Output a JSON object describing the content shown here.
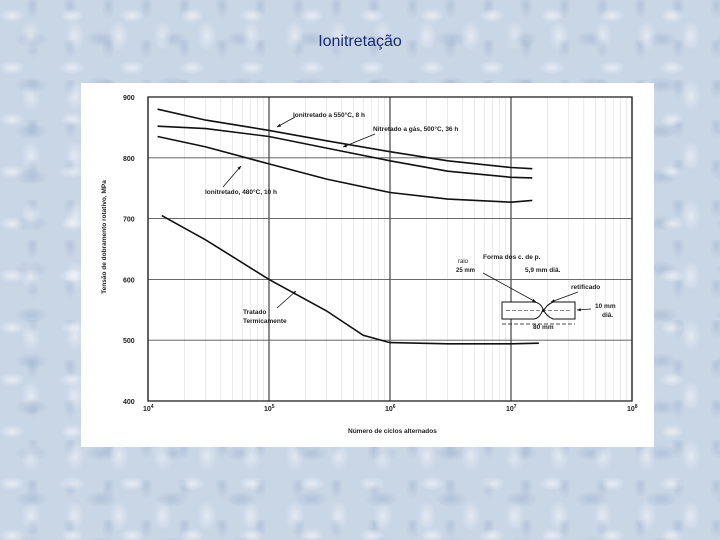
{
  "slide": {
    "title": "Ionitretação"
  },
  "chart_data": {
    "type": "line",
    "xlabel": "Número de ciclos alternados",
    "ylabel": "Tensão de dobramento rotativo, MPa",
    "xscale": "log",
    "xlim": [
      10000,
      100000000
    ],
    "ylim": [
      400,
      900
    ],
    "grid": true,
    "x_ticks": [
      {
        "value": 10000,
        "base": "10",
        "exp": "4"
      },
      {
        "value": 100000,
        "base": "10",
        "exp": "5"
      },
      {
        "value": 1000000,
        "base": "10",
        "exp": "6"
      },
      {
        "value": 10000000,
        "base": "10",
        "exp": "7"
      },
      {
        "value": 100000000,
        "base": "10",
        "exp": "8"
      }
    ],
    "y_ticks": [
      "900",
      "800",
      "700",
      "600",
      "500",
      "400"
    ],
    "series": [
      {
        "name": "Ionitretado a 550°C, 8 h",
        "points": [
          [
            12000,
            880
          ],
          [
            30000,
            862
          ],
          [
            100000,
            845
          ],
          [
            300000,
            828
          ],
          [
            1000000,
            810
          ],
          [
            3000000,
            795
          ],
          [
            10000000,
            784
          ],
          [
            15000000,
            782
          ]
        ]
      },
      {
        "name": "Nitretado a gás, 500°C, 36 h",
        "points": [
          [
            12000,
            852
          ],
          [
            30000,
            848
          ],
          [
            100000,
            835
          ],
          [
            300000,
            816
          ],
          [
            1000000,
            795
          ],
          [
            3000000,
            778
          ],
          [
            10000000,
            768
          ],
          [
            15000000,
            767
          ]
        ]
      },
      {
        "name": "Ionitretado, 480°C, 10 h",
        "points": [
          [
            12000,
            835
          ],
          [
            30000,
            818
          ],
          [
            100000,
            790
          ],
          [
            300000,
            765
          ],
          [
            1000000,
            743
          ],
          [
            3000000,
            732
          ],
          [
            10000000,
            727
          ],
          [
            15000000,
            730
          ]
        ]
      },
      {
        "name": "Tratado Termicamente",
        "points": [
          [
            13000,
            705
          ],
          [
            30000,
            665
          ],
          [
            100000,
            600
          ],
          [
            300000,
            548
          ],
          [
            600000,
            508
          ],
          [
            1000000,
            496
          ],
          [
            3000000,
            494
          ],
          [
            10000000,
            494
          ],
          [
            17000000,
            495
          ]
        ]
      }
    ],
    "annotations": {
      "specimen_title": "Forma dos c. de p.",
      "radius_label": "raio",
      "radius_value": "25 mm",
      "neck_diameter": "5,9 mm diâ.",
      "finish": "retificado",
      "end_diameter": "10 mm",
      "end_diameter_unit": "diâ.",
      "length": "80 mm"
    }
  }
}
